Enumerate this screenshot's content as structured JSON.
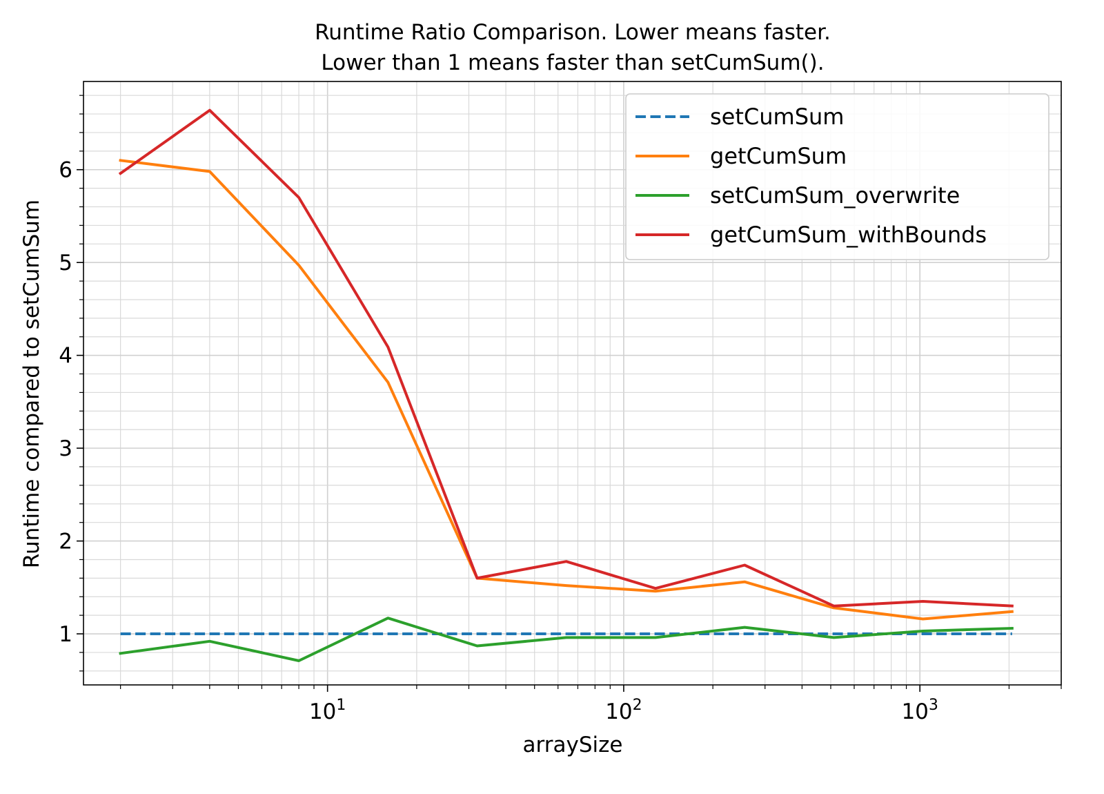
{
  "chart_data": {
    "type": "line",
    "title": "Runtime Ratio Comparison. Lower means faster.",
    "subtitle": "Lower than 1 means faster than setCumSum().",
    "xlabel": "arraySize",
    "ylabel": "Runtime compared to setCumSum",
    "xscale": "log",
    "xlim": [
      1.5,
      3000
    ],
    "ylim": [
      0.45,
      6.95
    ],
    "x_ticks": [
      {
        "base": "10",
        "exp": "1",
        "value": 10
      },
      {
        "base": "10",
        "exp": "2",
        "value": 100
      },
      {
        "base": "10",
        "exp": "3",
        "value": 1000
      }
    ],
    "y_ticks": [
      "1",
      "2",
      "3",
      "4",
      "5",
      "6"
    ],
    "grid": true,
    "legend_position": "top-right",
    "x": [
      2,
      4,
      8,
      16,
      32,
      64,
      128,
      256,
      512,
      1024,
      2048
    ],
    "series": [
      {
        "name": "setCumSum",
        "color": "#1f77b4",
        "style": "dashed",
        "values": [
          1,
          1,
          1,
          1,
          1,
          1,
          1,
          1,
          1,
          1,
          1
        ]
      },
      {
        "name": "getCumSum",
        "color": "#ff7f0e",
        "style": "solid",
        "values": [
          6.1,
          5.98,
          4.97,
          3.71,
          1.6,
          1.52,
          1.46,
          1.56,
          1.28,
          1.16,
          1.24
        ]
      },
      {
        "name": "setCumSum_overwrite",
        "color": "#2ca02c",
        "style": "solid",
        "values": [
          0.79,
          0.92,
          0.71,
          1.17,
          0.87,
          0.96,
          0.96,
          1.07,
          0.96,
          1.03,
          1.06
        ]
      },
      {
        "name": "getCumSum_withBounds",
        "color": "#d62728",
        "style": "solid",
        "values": [
          5.96,
          6.64,
          5.7,
          4.09,
          1.6,
          1.78,
          1.49,
          1.74,
          1.3,
          1.35,
          1.3
        ]
      }
    ]
  }
}
